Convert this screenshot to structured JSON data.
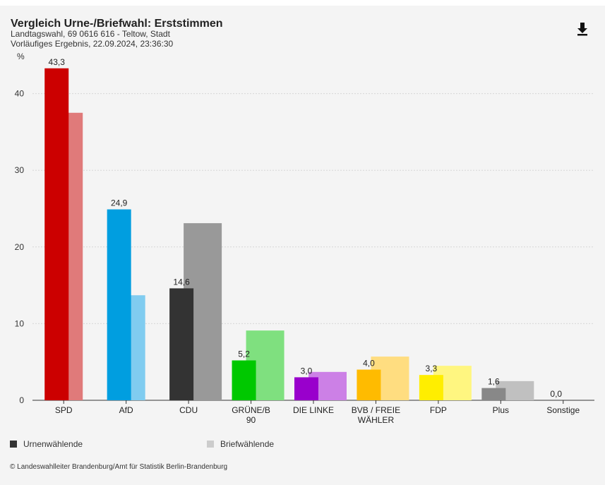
{
  "header": {
    "title": "Vergleich Urne-/Briefwahl: Erststimmen",
    "subtitle1": "Landtagswahl, 69 0616 616 - Teltow, Stadt",
    "subtitle2": "Vorläufiges Ergebnis, 22.09.2024, 23:36:30"
  },
  "toolbar": {
    "download_icon": "download-icon"
  },
  "legend": {
    "urne_label": "Urnenwählende",
    "urne_color": "#333333",
    "brief_label": "Briefwählende",
    "brief_color": "#cccccc"
  },
  "footer": {
    "text": "© Landeswahlleiter Brandenburg/Amt für Statistik Berlin-Brandenburg"
  },
  "chart_data": {
    "type": "bar",
    "ylabel": "%",
    "ylim": [
      0,
      43.3
    ],
    "yticks": [
      0,
      10,
      20,
      30,
      40
    ],
    "grid": true,
    "categories": [
      [
        "SPD"
      ],
      [
        "AfD"
      ],
      [
        "CDU"
      ],
      [
        "GRÜNE/B",
        "90"
      ],
      [
        "DIE LINKE"
      ],
      [
        "BVB / FREIE",
        "WÄHLER"
      ],
      [
        "FDP"
      ],
      [
        "Plus"
      ],
      [
        "Sonstige"
      ]
    ],
    "series": [
      {
        "name": "Urnenwählende",
        "values": [
          43.3,
          24.9,
          14.6,
          5.2,
          3.0,
          4.0,
          3.3,
          1.6,
          0.0
        ],
        "labels": [
          "43,3",
          "24,9",
          "14,6",
          "5,2",
          "3,0",
          "4,0",
          "3,3",
          "1,6",
          "0,0"
        ],
        "colors": [
          "#cc0000",
          "#009ee0",
          "#333333",
          "#00c800",
          "#9900cc",
          "#ffbb00",
          "#ffee00",
          "#888888",
          "#bbbbbb"
        ]
      },
      {
        "name": "Briefwählende",
        "values": [
          37.5,
          13.7,
          23.1,
          9.1,
          3.7,
          5.7,
          4.5,
          2.5,
          0.0
        ],
        "colors": [
          "#e07a7a",
          "#80ccf0",
          "#999999",
          "#7fe07f",
          "#cc80e6",
          "#ffdd80",
          "#fff680",
          "#c0c0c0",
          "#dddddd"
        ]
      }
    ]
  }
}
